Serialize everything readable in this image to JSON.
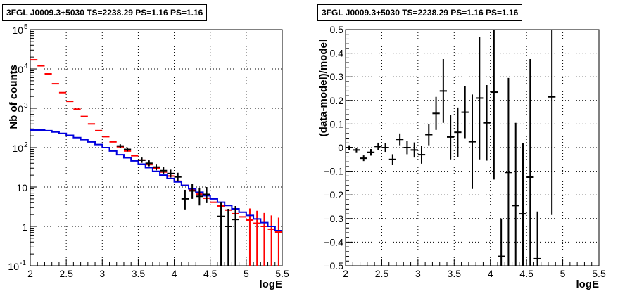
{
  "chart_data": [
    {
      "type": "line",
      "title": "3FGL J0009.3+5030 TS=2238.29 PS=1.16 PS=1.16",
      "xlabel": "logE",
      "ylabel": "Nb of counts",
      "xlim": [
        2,
        5.5
      ],
      "ylim": [
        0.1,
        100000
      ],
      "log_y": true,
      "grid": true,
      "x_ticks": [
        "2",
        "2.5",
        "3",
        "3.5",
        "4",
        "4.5",
        "5",
        "5.5"
      ],
      "y_ticks": [
        {
          "mantissa": "10",
          "exp": "-1"
        },
        {
          "mantissa": "1",
          "exp": ""
        },
        {
          "mantissa": "10",
          "exp": ""
        },
        {
          "mantissa": "10",
          "exp": "2"
        },
        {
          "mantissa": "10",
          "exp": "3"
        },
        {
          "mantissa": "10",
          "exp": "4"
        },
        {
          "mantissa": "10",
          "exp": "5"
        }
      ],
      "series": [
        {
          "color": "#ff0000",
          "style": "errorbar",
          "x": [
            2.05,
            2.15,
            2.25,
            2.35,
            2.45,
            2.55,
            2.65,
            2.75,
            2.85,
            2.95,
            3.05,
            3.15,
            3.25,
            3.35,
            3.45,
            3.55,
            3.65,
            3.75,
            3.85,
            3.95,
            4.05,
            4.15,
            4.25,
            4.35,
            4.45,
            4.55,
            4.65,
            4.75,
            4.85,
            4.95,
            5.05,
            5.15,
            5.25,
            5.35,
            5.45
          ],
          "y": [
            17000,
            12000,
            7500,
            4200,
            2500,
            1500,
            950,
            620,
            400,
            270,
            190,
            140,
            105,
            82,
            62,
            48,
            37,
            30,
            24,
            19,
            14,
            11,
            8.5,
            6.6,
            5.2,
            4.1,
            3.3,
            2.6,
            2.1,
            1.75,
            1.45,
            1.2,
            1.0,
            0.85,
            0.72
          ],
          "err_lo": [
            0,
            0,
            0,
            0,
            0,
            0,
            0,
            0,
            0,
            0,
            0,
            0,
            0,
            0,
            0,
            0,
            0,
            0,
            0,
            0,
            0,
            0,
            0,
            0,
            0,
            0,
            0,
            0,
            0,
            0,
            1.45,
            1.2,
            1.0,
            0.85,
            0.72
          ],
          "err_hi": [
            0,
            0,
            0,
            0,
            0,
            0,
            0,
            0,
            0,
            0,
            0,
            0,
            0,
            0,
            0,
            0,
            0,
            0,
            0,
            0,
            0,
            0,
            0,
            0,
            0,
            0,
            0,
            0,
            0,
            0,
            1.4,
            1.3,
            1.2,
            1.05,
            0.95
          ]
        },
        {
          "color": "#0000dd",
          "style": "step",
          "edges": [
            2.0,
            2.1,
            2.2,
            2.3,
            2.4,
            2.5,
            2.6,
            2.7,
            2.8,
            2.9,
            3.0,
            3.1,
            3.2,
            3.3,
            3.4,
            3.5,
            3.6,
            3.7,
            3.8,
            3.9,
            4.0,
            4.1,
            4.2,
            4.3,
            4.4,
            4.5,
            4.6,
            4.7,
            4.8,
            4.9,
            5.0,
            5.1,
            5.2,
            5.3,
            5.4,
            5.5
          ],
          "y": [
            280,
            280,
            270,
            250,
            230,
            205,
            180,
            160,
            140,
            120,
            100,
            82,
            66,
            55,
            46,
            38,
            31,
            25,
            20,
            16.5,
            13.5,
            11,
            9,
            7.4,
            6,
            5,
            4.1,
            3.4,
            2.8,
            2.3,
            1.9,
            1.55,
            1.25,
            1.0,
            0.78
          ]
        },
        {
          "color": "#000000",
          "style": "errorbar",
          "x": [
            3.25,
            3.35,
            3.55,
            3.65,
            3.75,
            3.85,
            3.95,
            4.05,
            4.15,
            4.25,
            4.35,
            4.45,
            4.65,
            4.75,
            4.85
          ],
          "y": [
            110,
            90,
            48,
            40,
            32,
            26,
            22,
            18,
            5,
            8,
            5.8,
            6.5,
            1.8,
            1.0,
            1.5
          ],
          "err_lo": [
            11,
            10,
            7,
            6.5,
            5.5,
            5,
            4.6,
            4.2,
            2.3,
            3,
            2.4,
            2.6,
            1.8,
            1.0,
            1.5
          ],
          "err_hi": [
            12,
            11,
            8,
            7.5,
            6.5,
            6,
            5.5,
            5,
            3.5,
            4,
            3.5,
            3.5,
            2.2,
            1.8,
            1.8
          ]
        }
      ]
    },
    {
      "type": "scatter",
      "title": "3FGL J0009.3+5030 TS=2238.29 PS=1.16 PS=1.16",
      "xlabel": "logE",
      "ylabel": "(data-model)/model",
      "xlim": [
        2,
        5.5
      ],
      "ylim": [
        -0.5,
        0.5
      ],
      "grid": true,
      "x_ticks": [
        "2",
        "2.5",
        "3",
        "3.5",
        "4",
        "4.5",
        "5",
        "5.5"
      ],
      "y_ticks": [
        "-0.5",
        "-0.4",
        "-0.3",
        "-0.2",
        "-0.1",
        "0",
        "0.1",
        "0.2",
        "0.3",
        "0.4",
        "0.5"
      ],
      "series": [
        {
          "color": "#000000",
          "style": "errorbar",
          "x": [
            2.05,
            2.15,
            2.25,
            2.35,
            2.45,
            2.55,
            2.65,
            2.75,
            2.85,
            2.95,
            3.05,
            3.15,
            3.25,
            3.35,
            3.45,
            3.55,
            3.65,
            3.75,
            3.85,
            3.95,
            4.05,
            4.15,
            4.25,
            4.35,
            4.45,
            4.55,
            4.65,
            4.85
          ],
          "y": [
            0.0,
            -0.01,
            -0.045,
            -0.02,
            0.005,
            0.0,
            -0.05,
            0.035,
            0.0,
            -0.01,
            -0.03,
            0.055,
            0.145,
            0.24,
            0.045,
            0.065,
            0.15,
            0.025,
            0.21,
            0.105,
            0.235,
            -0.46,
            -0.105,
            -0.245,
            -0.28,
            -0.125,
            -0.47,
            0.215
          ],
          "err": [
            0.01,
            0.01,
            0.012,
            0.014,
            0.016,
            0.018,
            0.022,
            0.025,
            0.028,
            0.032,
            0.038,
            0.045,
            0.07,
            0.135,
            0.095,
            0.105,
            0.11,
            0.2,
            0.26,
            0.16,
            0.37,
            0.16,
            0.4,
            0.35,
            0.3,
            0.5,
            0.2,
            0.5
          ]
        }
      ]
    }
  ]
}
